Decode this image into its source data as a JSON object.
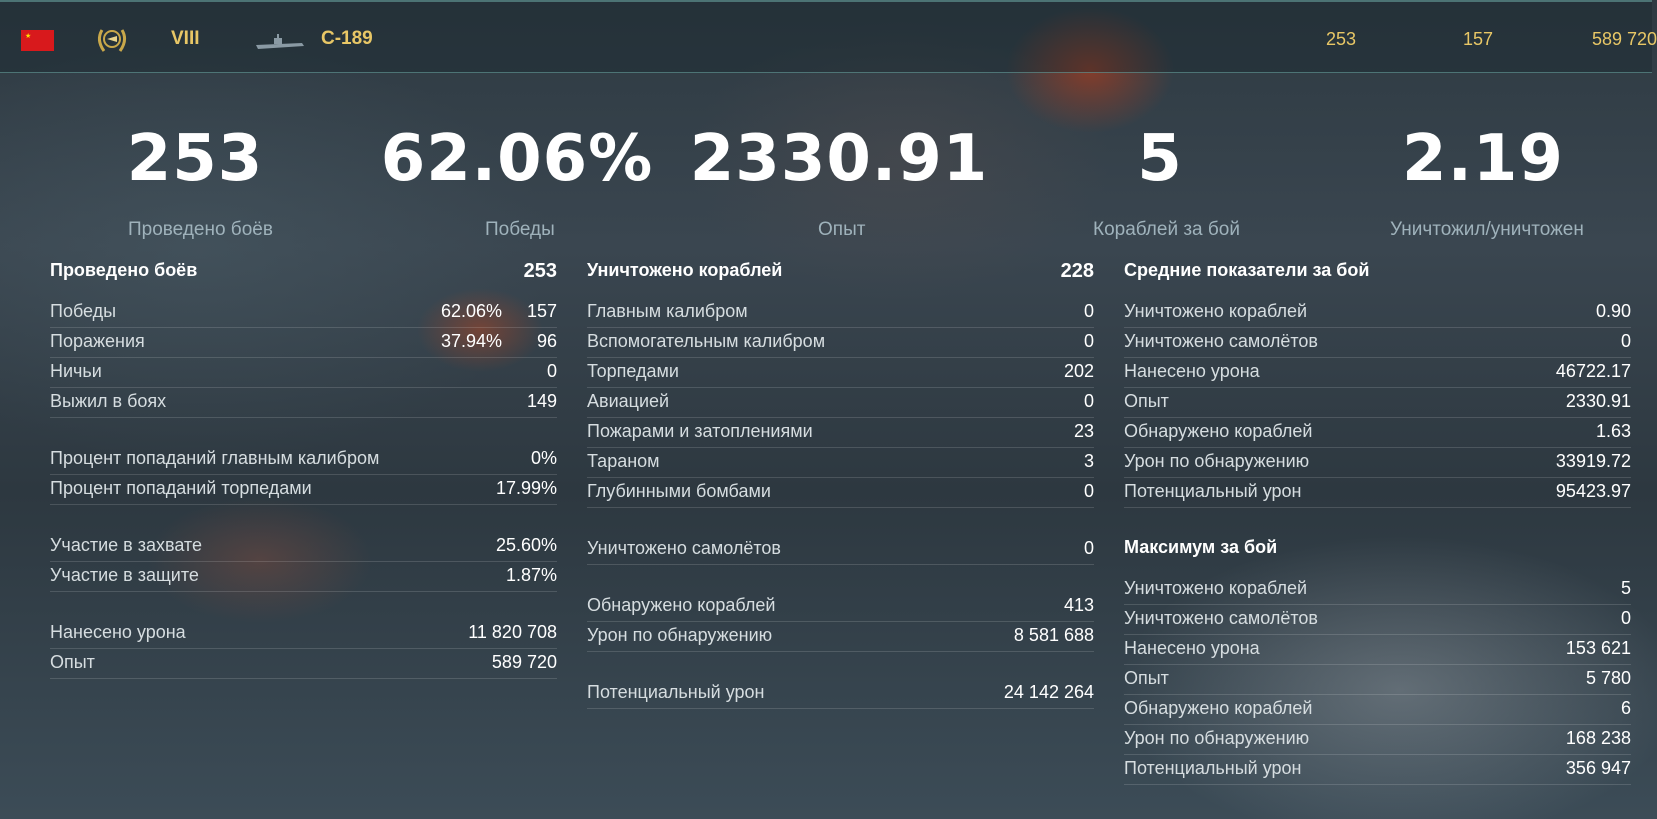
{
  "header": {
    "tier": "VIII",
    "ship_name": "С-189",
    "stats": [
      "253",
      "157",
      "589 720"
    ]
  },
  "summary": [
    {
      "value": "253",
      "label": "Проведено боёв"
    },
    {
      "value": "62.06%",
      "label": "Победы"
    },
    {
      "value": "2330.91",
      "label": "Опыт"
    },
    {
      "value": "5",
      "label": "Кораблей за бой"
    },
    {
      "value": "2.19",
      "label": "Уничтожил/уничтожен"
    }
  ],
  "battles": {
    "title": "Проведено боёв",
    "total": "253",
    "wins": {
      "label": "Победы",
      "pct": "62.06%",
      "value": "157"
    },
    "losses": {
      "label": "Поражения",
      "pct": "37.94%",
      "value": "96"
    },
    "draws": {
      "label": "Ничьи",
      "value": "0"
    },
    "survived": {
      "label": "Выжил в боях",
      "value": "149"
    },
    "hit_main": {
      "label": "Процент попаданий главным калибром",
      "value": "0%"
    },
    "hit_torp": {
      "label": "Процент попаданий торпедами",
      "value": "17.99%"
    },
    "capture": {
      "label": "Участие в захвате",
      "value": "25.60%"
    },
    "defense": {
      "label": "Участие в защите",
      "value": "1.87%"
    },
    "damage": {
      "label": "Нанесено урона",
      "value": "11 820 708"
    },
    "xp": {
      "label": "Опыт",
      "value": "589 720"
    }
  },
  "kills": {
    "title": "Уничтожено кораблей",
    "total": "228",
    "rows": [
      {
        "label": "Главным калибром",
        "value": "0"
      },
      {
        "label": "Вспомогательным калибром",
        "value": "0"
      },
      {
        "label": "Торпедами",
        "value": "202"
      },
      {
        "label": "Авиацией",
        "value": "0"
      },
      {
        "label": "Пожарами и затоплениями",
        "value": "23"
      },
      {
        "label": "Тараном",
        "value": "3"
      },
      {
        "label": "Глубинными бомбами",
        "value": "0"
      }
    ],
    "planes": {
      "label": "Уничтожено самолётов",
      "value": "0"
    },
    "spotted": {
      "label": "Обнаружено кораблей",
      "value": "413"
    },
    "spot_dmg": {
      "label": "Урон по обнаружению",
      "value": "8 581 688"
    },
    "potential": {
      "label": "Потенциальный урон",
      "value": "24 142 264"
    }
  },
  "average": {
    "title": "Средние показатели за бой",
    "rows": [
      {
        "label": "Уничтожено кораблей",
        "value": "0.90"
      },
      {
        "label": "Уничтожено самолётов",
        "value": "0"
      },
      {
        "label": "Нанесено урона",
        "value": "46722.17"
      },
      {
        "label": "Опыт",
        "value": "2330.91"
      },
      {
        "label": "Обнаружено кораблей",
        "value": "1.63"
      },
      {
        "label": "Урон по обнаружению",
        "value": "33919.72"
      },
      {
        "label": "Потенциальный урон",
        "value": "95423.97"
      }
    ]
  },
  "maximum": {
    "title": "Максимум за бой",
    "rows": [
      {
        "label": "Уничтожено кораблей",
        "value": "5"
      },
      {
        "label": "Уничтожено самолётов",
        "value": "0"
      },
      {
        "label": "Нанесено урона",
        "value": "153 621"
      },
      {
        "label": "Опыт",
        "value": "5 780"
      },
      {
        "label": "Обнаружено кораблей",
        "value": "6"
      },
      {
        "label": "Урон по обнаружению",
        "value": "168 238"
      },
      {
        "label": "Потенциальный урон",
        "value": "356 947"
      }
    ]
  },
  "colors": {
    "accent_gold": "#e8c766",
    "flag_red": "#d8191c"
  }
}
